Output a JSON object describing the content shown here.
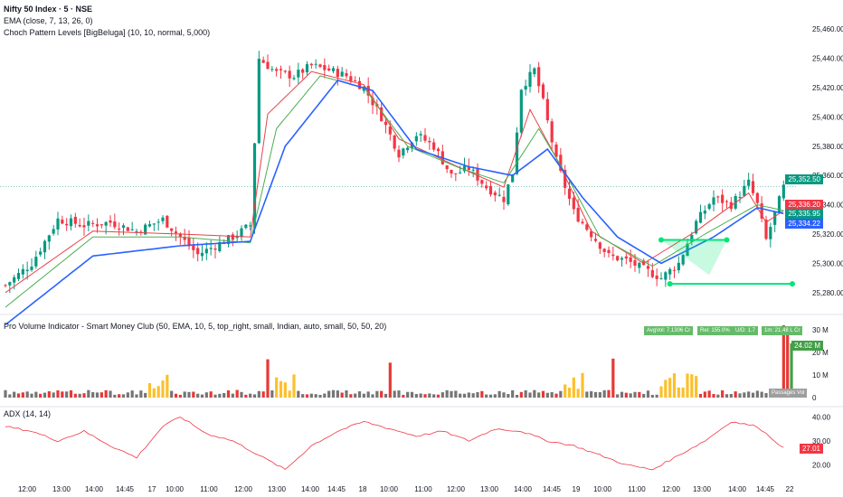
{
  "header": {
    "symbol": "Nifty 50 Index · 5 · NSE",
    "ema": "EMA (close, 7, 13, 26, 0)",
    "choch": "Choch Pattern Levels [BigBeluga] (10, 10, normal, 5,000)",
    "volume_indicator": "Pro Volume Indicator - Smart Money Club (50, EMA, 10, 5, top_right, small, Indian, auto, small, 50, 50, 20)",
    "adx": "ADX (14, 14)"
  },
  "colors": {
    "up": "#089981",
    "down": "#f23645",
    "ema_fast": "#e84149",
    "ema_mid": "#4caf50",
    "ema_slow": "#2962ff",
    "choch": "#00e676",
    "vol_red": "#e53935",
    "vol_green": "#43a047",
    "vol_yellow": "#fbc02d",
    "vol_gray": "#757575",
    "adx": "#f23645"
  },
  "price_badges": [
    {
      "value": "25,352.50",
      "color": "#089981"
    },
    {
      "value": "25,336.20",
      "color": "#f23645"
    },
    {
      "value": "25,335.95",
      "color": "#089981"
    },
    {
      "value": "25,334.22",
      "color": "#2962ff"
    }
  ],
  "volume_table": [
    "AvgVol: 7.1306 Cr",
    "Rel: 155.0%",
    "U/D: 1.7",
    "1m: 21.48 L Cr"
  ],
  "volume_tag": "Passages Vol",
  "volume_badge": {
    "value": "24.02 M",
    "color": "#43a047"
  },
  "adx_badge": {
    "value": "27.01",
    "color": "#f23645"
  },
  "chart_data": [
    {
      "type": "candlestick",
      "title": "Nifty 50 Index · 5 · NSE",
      "ylim": [
        25270,
        25470
      ],
      "y_ticks": [
        "25,460.00",
        "25,440.00",
        "25,420.00",
        "25,400.00",
        "25,380.00",
        "25,360.00",
        "25,340.00",
        "25,320.00",
        "25,300.00",
        "25,280.00"
      ],
      "x_ticks": [
        "12:00",
        "13:00",
        "14:00",
        "14:45",
        "17",
        "10:00",
        "11:00",
        "12:00",
        "13:00",
        "14:00",
        "14:45",
        "18",
        "10:00",
        "11:00",
        "12:00",
        "13:00",
        "14:00",
        "14:45",
        "19",
        "10:00",
        "11:00",
        "12:00",
        "13:00",
        "14:00",
        "14:45",
        "22"
      ],
      "price_path": [
        [
          0,
          25285
        ],
        [
          6,
          25300
        ],
        [
          12,
          25330
        ],
        [
          18,
          25326
        ],
        [
          24,
          25328
        ],
        [
          30,
          25322
        ],
        [
          36,
          25330
        ],
        [
          40,
          25318
        ],
        [
          44,
          25306
        ],
        [
          48,
          25312
        ],
        [
          52,
          25318
        ],
        [
          56,
          25326
        ],
        [
          58,
          25440
        ],
        [
          62,
          25430
        ],
        [
          66,
          25428
        ],
        [
          70,
          25435
        ],
        [
          74,
          25432
        ],
        [
          78,
          25428
        ],
        [
          82,
          25420
        ],
        [
          86,
          25400
        ],
        [
          90,
          25375
        ],
        [
          94,
          25388
        ],
        [
          98,
          25380
        ],
        [
          102,
          25360
        ],
        [
          106,
          25365
        ],
        [
          110,
          25352
        ],
        [
          114,
          25344
        ],
        [
          116,
          25362
        ],
        [
          118,
          25420
        ],
        [
          121,
          25432
        ],
        [
          123,
          25410
        ],
        [
          126,
          25370
        ],
        [
          130,
          25335
        ],
        [
          134,
          25320
        ],
        [
          138,
          25305
        ],
        [
          142,
          25302
        ],
        [
          146,
          25296
        ],
        [
          150,
          25290
        ],
        [
          154,
          25300
        ],
        [
          158,
          25328
        ],
        [
          162,
          25345
        ],
        [
          166,
          25340
        ],
        [
          170,
          25355
        ],
        [
          172,
          25340
        ],
        [
          174,
          25316
        ],
        [
          176,
          25334
        ],
        [
          178,
          25352
        ]
      ],
      "ema_series": [
        {
          "name": "EMA 7",
          "values": [
            [
              0,
              25280
            ],
            [
              20,
              25322
            ],
            [
              40,
              25320
            ],
            [
              56,
              25318
            ],
            [
              60,
              25402
            ],
            [
              70,
              25431
            ],
            [
              82,
              25422
            ],
            [
              90,
              25385
            ],
            [
              102,
              25368
            ],
            [
              114,
              25352
            ],
            [
              120,
              25405
            ],
            [
              126,
              25372
            ],
            [
              134,
              25322
            ],
            [
              146,
              25300
            ],
            [
              158,
              25322
            ],
            [
              170,
              25348
            ],
            [
              174,
              25328
            ],
            [
              178,
              25336
            ]
          ]
        },
        {
          "name": "EMA 13",
          "values": [
            [
              0,
              25270
            ],
            [
              20,
              25318
            ],
            [
              40,
              25318
            ],
            [
              56,
              25314
            ],
            [
              62,
              25392
            ],
            [
              72,
              25428
            ],
            [
              82,
              25420
            ],
            [
              92,
              25380
            ],
            [
              104,
              25365
            ],
            [
              114,
              25355
            ],
            [
              122,
              25392
            ],
            [
              128,
              25362
            ],
            [
              136,
              25318
            ],
            [
              148,
              25298
            ],
            [
              160,
              25320
            ],
            [
              172,
              25340
            ],
            [
              178,
              25336
            ]
          ]
        },
        {
          "name": "EMA 26",
          "values": [
            [
              0,
              25258
            ],
            [
              20,
              25305
            ],
            [
              40,
              25312
            ],
            [
              56,
              25315
            ],
            [
              64,
              25380
            ],
            [
              76,
              25425
            ],
            [
              84,
              25418
            ],
            [
              94,
              25378
            ],
            [
              106,
              25366
            ],
            [
              116,
              25360
            ],
            [
              124,
              25378
            ],
            [
              132,
              25345
            ],
            [
              140,
              25318
            ],
            [
              150,
              25300
            ],
            [
              162,
              25318
            ],
            [
              172,
              25338
            ],
            [
              178,
              25334
            ]
          ]
        }
      ],
      "choch_levels": [
        {
          "x1": 150,
          "x2": 156,
          "y_from": 25315,
          "y_to": 25316,
          "fill": true
        },
        {
          "x1": 151,
          "x2": 180,
          "y_from": 25286,
          "y_to": 25286,
          "fill": false
        }
      ]
    },
    {
      "type": "bar",
      "title": "Pro Volume Indicator - Smart Money Club",
      "ylim": [
        0,
        32
      ],
      "y_ticks": [
        "30 M",
        "20 M",
        "10 M",
        "0"
      ],
      "count": 180,
      "spikes": [
        {
          "i": 178,
          "value": 32
        },
        {
          "i": 179,
          "value": 30
        },
        {
          "i": 180,
          "value": 24
        }
      ]
    },
    {
      "type": "line",
      "title": "ADX (14, 14)",
      "ylim": [
        16,
        42
      ],
      "y_ticks": [
        "40.00",
        "30.00",
        "20.00"
      ],
      "values": [
        [
          0,
          36
        ],
        [
          6,
          34
        ],
        [
          12,
          30
        ],
        [
          18,
          34
        ],
        [
          24,
          28
        ],
        [
          30,
          23
        ],
        [
          36,
          36
        ],
        [
          40,
          40
        ],
        [
          46,
          33
        ],
        [
          52,
          30
        ],
        [
          58,
          24
        ],
        [
          64,
          18
        ],
        [
          70,
          28
        ],
        [
          76,
          34
        ],
        [
          82,
          38
        ],
        [
          88,
          35
        ],
        [
          94,
          32
        ],
        [
          100,
          34
        ],
        [
          106,
          30
        ],
        [
          112,
          35
        ],
        [
          118,
          34
        ],
        [
          124,
          30
        ],
        [
          130,
          28
        ],
        [
          136,
          24
        ],
        [
          142,
          20
        ],
        [
          148,
          18
        ],
        [
          154,
          24
        ],
        [
          160,
          30
        ],
        [
          166,
          38
        ],
        [
          172,
          36
        ],
        [
          176,
          30
        ],
        [
          178,
          27
        ]
      ]
    }
  ]
}
